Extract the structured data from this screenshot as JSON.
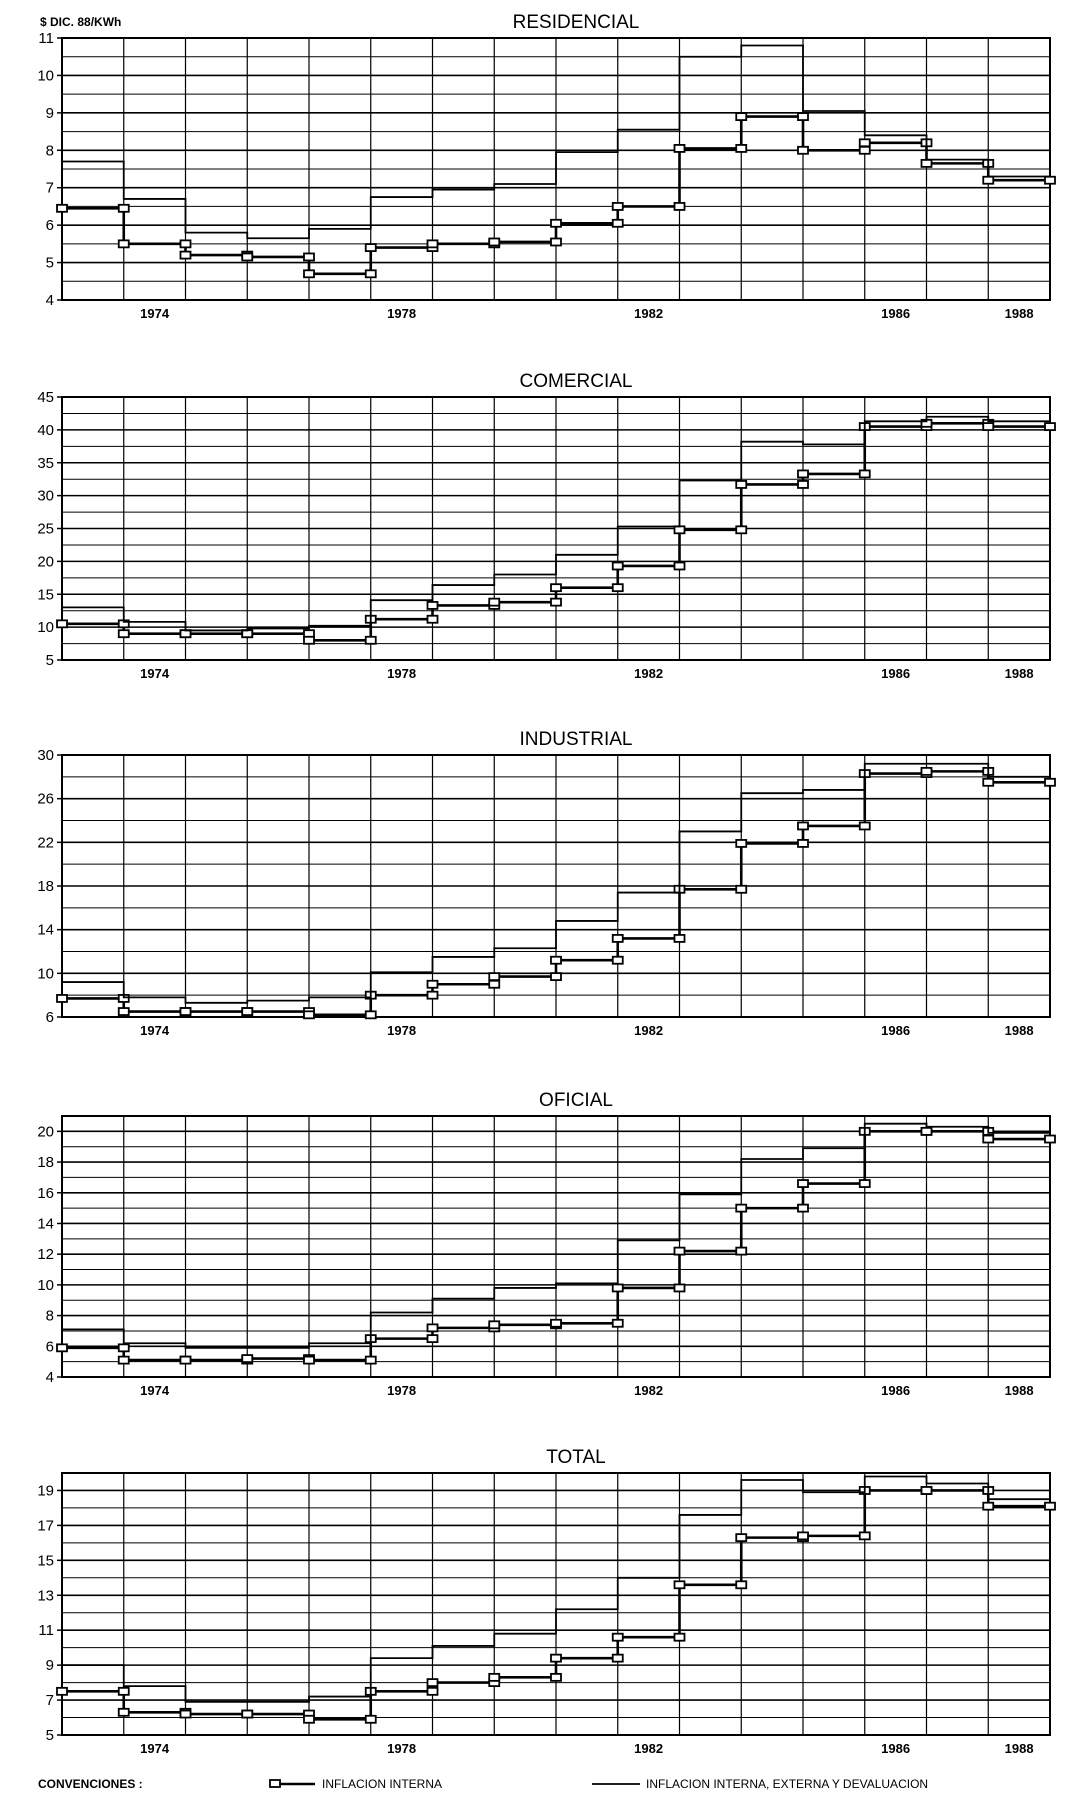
{
  "unit_label": "$ DIC. 88/KWh",
  "legend": {
    "heading": "CONVENCIONES :",
    "items": [
      {
        "label": "INFLACION INTERNA",
        "marker": "square"
      },
      {
        "label": "INFLACION INTERNA, EXTERNA Y DEVALUACION",
        "marker": "line"
      }
    ]
  },
  "chart_data": [
    {
      "type": "line",
      "step": true,
      "title": "RESIDENCIAL",
      "x": [
        1973,
        1974,
        1975,
        1976,
        1977,
        1978,
        1979,
        1980,
        1981,
        1982,
        1983,
        1984,
        1985,
        1986,
        1987,
        1988
      ],
      "xticks": [
        1974,
        1978,
        1982,
        1986,
        1988
      ],
      "ylim": [
        4,
        11
      ],
      "yticks": [
        4,
        5,
        6,
        7,
        8,
        9,
        10,
        11
      ],
      "grid": true,
      "series": [
        {
          "name": "INFLACION INTERNA",
          "marker": "square",
          "values": [
            6.45,
            5.5,
            5.2,
            5.15,
            4.7,
            5.4,
            5.5,
            5.55,
            6.05,
            6.5,
            8.05,
            8.9,
            8.0,
            8.2,
            7.65,
            7.2
          ]
        },
        {
          "name": "INFLACION INTERNA, EXTERNA Y DEVALUACION",
          "marker": "line",
          "values": [
            7.7,
            6.7,
            5.8,
            5.65,
            5.9,
            6.75,
            6.95,
            7.1,
            7.95,
            8.55,
            10.5,
            10.8,
            9.05,
            8.4,
            7.75,
            7.3
          ]
        }
      ]
    },
    {
      "type": "line",
      "step": true,
      "title": "COMERCIAL",
      "x": [
        1973,
        1974,
        1975,
        1976,
        1977,
        1978,
        1979,
        1980,
        1981,
        1982,
        1983,
        1984,
        1985,
        1986,
        1987,
        1988
      ],
      "xticks": [
        1974,
        1978,
        1982,
        1986,
        1988
      ],
      "ylim": [
        5,
        45
      ],
      "yticks": [
        5,
        10,
        15,
        20,
        25,
        30,
        35,
        40,
        45
      ],
      "grid": true,
      "series": [
        {
          "name": "INFLACION INTERNA",
          "marker": "square",
          "values": [
            10.5,
            9,
            9,
            9,
            8,
            11.2,
            13.3,
            13.8,
            16,
            19.3,
            24.8,
            31.7,
            33.3,
            40.5,
            41,
            40.5
          ]
        },
        {
          "name": "INFLACION INTERNA, EXTERNA Y DEVALUACION",
          "marker": "line",
          "values": [
            13,
            10.8,
            9.5,
            9.8,
            10.2,
            14.1,
            16.4,
            18,
            21,
            25.3,
            32.3,
            38.2,
            37.8,
            41.3,
            42,
            41.3
          ]
        }
      ]
    },
    {
      "type": "line",
      "step": true,
      "title": "INDUSTRIAL",
      "x": [
        1973,
        1974,
        1975,
        1976,
        1977,
        1978,
        1979,
        1980,
        1981,
        1982,
        1983,
        1984,
        1985,
        1986,
        1987,
        1988
      ],
      "xticks": [
        1974,
        1978,
        1982,
        1986,
        1988
      ],
      "ylim": [
        6,
        30
      ],
      "yticks": [
        6,
        10,
        14,
        18,
        22,
        26,
        30
      ],
      "grid": true,
      "series": [
        {
          "name": "INFLACION INTERNA",
          "marker": "square",
          "values": [
            7.7,
            6.5,
            6.5,
            6.5,
            6.2,
            8,
            9,
            9.7,
            11.2,
            13.2,
            17.7,
            21.9,
            23.5,
            28.3,
            28.5,
            27.5
          ]
        },
        {
          "name": "INFLACION INTERNA, EXTERNA Y DEVALUACION",
          "marker": "line",
          "values": [
            9.2,
            7.8,
            7.3,
            7.5,
            7.8,
            10.1,
            11.5,
            12.3,
            14.8,
            17.4,
            23,
            26.5,
            26.8,
            29.2,
            29.2,
            28
          ]
        }
      ]
    },
    {
      "type": "line",
      "step": true,
      "title": "OFICIAL",
      "x": [
        1973,
        1974,
        1975,
        1976,
        1977,
        1978,
        1979,
        1980,
        1981,
        1982,
        1983,
        1984,
        1985,
        1986,
        1987,
        1988
      ],
      "xticks": [
        1974,
        1978,
        1982,
        1986,
        1988
      ],
      "ylim": [
        4,
        21
      ],
      "yticks": [
        4,
        6,
        8,
        10,
        12,
        14,
        16,
        18,
        20
      ],
      "grid": true,
      "series": [
        {
          "name": "INFLACION INTERNA",
          "marker": "square",
          "values": [
            5.9,
            5.1,
            5.1,
            5.2,
            5.1,
            6.5,
            7.2,
            7.4,
            7.5,
            9.8,
            12.2,
            15,
            16.6,
            20,
            20,
            19.5
          ]
        },
        {
          "name": "INFLACION INTERNA, EXTERNA Y DEVALUACION",
          "marker": "line",
          "values": [
            7.1,
            6.2,
            5.9,
            5.9,
            6.2,
            8.2,
            9.1,
            9.8,
            10.1,
            12.9,
            15.9,
            18.2,
            18.9,
            20.5,
            20.3,
            19.9
          ]
        }
      ]
    },
    {
      "type": "line",
      "step": true,
      "title": "TOTAL",
      "x": [
        1973,
        1974,
        1975,
        1976,
        1977,
        1978,
        1979,
        1980,
        1981,
        1982,
        1983,
        1984,
        1985,
        1986,
        1987,
        1988
      ],
      "xticks": [
        1974,
        1978,
        1982,
        1986,
        1988
      ],
      "ylim": [
        5,
        20
      ],
      "yticks": [
        5,
        7,
        9,
        11,
        13,
        15,
        17,
        19
      ],
      "grid": true,
      "series": [
        {
          "name": "INFLACION INTERNA",
          "marker": "square",
          "values": [
            7.5,
            6.3,
            6.2,
            6.2,
            5.9,
            7.5,
            8,
            8.3,
            9.4,
            10.6,
            13.6,
            16.3,
            16.4,
            19,
            19,
            18.1
          ]
        },
        {
          "name": "INFLACION INTERNA, EXTERNA Y DEVALUACION",
          "marker": "line",
          "values": [
            9,
            7.8,
            6.9,
            6.9,
            7.2,
            9.4,
            10.1,
            10.8,
            12.2,
            14,
            17.6,
            19.6,
            18.9,
            19.8,
            19.4,
            18.5
          ]
        }
      ]
    }
  ]
}
